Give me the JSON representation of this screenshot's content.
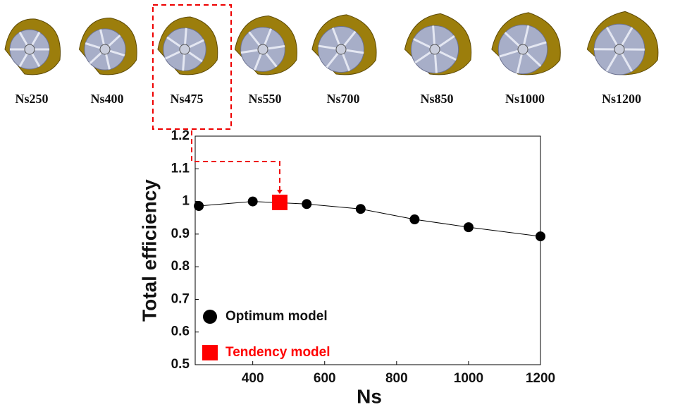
{
  "impeller_labels": [
    "Ns250",
    "Ns400",
    "Ns475",
    "Ns550",
    "Ns700",
    "Ns850",
    "Ns1000",
    "Ns1200"
  ],
  "chart_data": {
    "type": "line",
    "x_label": "Ns",
    "y_label": "Total efficiency",
    "xlim": [
      240,
      1200
    ],
    "xticks": [
      400,
      600,
      800,
      1000,
      1200
    ],
    "ylim": [
      0.5,
      1.2
    ],
    "yticks": [
      0.5,
      0.6,
      0.7,
      0.8,
      0.9,
      1,
      1.1,
      1.2
    ],
    "legend": "lower left",
    "series": [
      {
        "name": "Optimum model",
        "color": "#000000",
        "marker": "circle",
        "x": [
          250,
          400,
          550,
          700,
          850,
          1000,
          1200
        ],
        "values": [
          0.986,
          1.0,
          0.992,
          0.977,
          0.945,
          0.921,
          0.893
        ]
      },
      {
        "name": "Tendency model",
        "color": "#ff0000",
        "marker": "square",
        "x": [
          475
        ],
        "values": [
          0.997
        ]
      }
    ]
  }
}
